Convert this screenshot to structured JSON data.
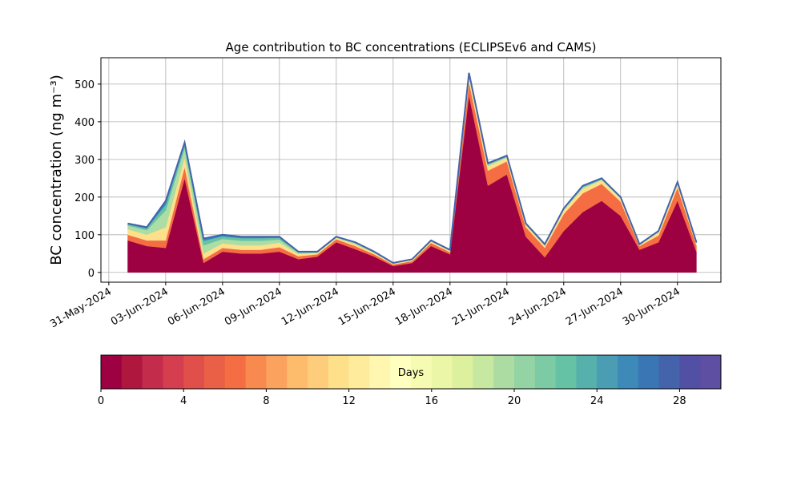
{
  "chart_data": {
    "type": "stacked_area",
    "title": "Age contribution to BC concentrations (ECLIPSEv6 and CAMS)",
    "ylabel": "BC concentration (ng m⁻³)",
    "x": [
      "2024-06-01",
      "2024-06-02",
      "2024-06-03",
      "2024-06-04",
      "2024-06-05",
      "2024-06-06",
      "2024-06-07",
      "2024-06-08",
      "2024-06-09",
      "2024-06-10",
      "2024-06-11",
      "2024-06-12",
      "2024-06-13",
      "2024-06-14",
      "2024-06-15",
      "2024-06-16",
      "2024-06-17",
      "2024-06-18",
      "2024-06-19",
      "2024-06-20",
      "2024-06-21",
      "2024-06-22",
      "2024-06-23",
      "2024-06-24",
      "2024-06-25",
      "2024-06-26",
      "2024-06-27",
      "2024-06-28",
      "2024-06-29",
      "2024-06-30",
      "2024-07-01"
    ],
    "series": [
      {
        "color": "#9e0142",
        "values": [
          85,
          70,
          65,
          250,
          25,
          55,
          50,
          50,
          55,
          35,
          42,
          80,
          62,
          42,
          17,
          25,
          70,
          48,
          470,
          230,
          260,
          95,
          40,
          110,
          160,
          190,
          150,
          60,
          80,
          190,
          55
        ]
      },
      {
        "color": "#f46d43",
        "values": [
          15,
          15,
          20,
          30,
          10,
          10,
          10,
          10,
          12,
          8,
          6,
          8,
          8,
          6,
          4,
          5,
          8,
          6,
          35,
          40,
          35,
          25,
          25,
          45,
          50,
          45,
          38,
          10,
          18,
          35,
          17
        ]
      },
      {
        "color": "#fee08b",
        "values": [
          15,
          15,
          35,
          25,
          15,
          12,
          12,
          12,
          12,
          6,
          4,
          4,
          5,
          4,
          2,
          3,
          4,
          3,
          15,
          12,
          10,
          6,
          6,
          10,
          12,
          10,
          8,
          3,
          8,
          10,
          5
        ]
      },
      {
        "color": "#abdda4",
        "values": [
          10,
          12,
          45,
          25,
          22,
          12,
          12,
          12,
          8,
          3,
          1,
          1,
          3,
          1,
          1,
          1,
          1,
          1,
          5,
          4,
          2,
          2,
          2,
          3,
          4,
          2,
          2,
          1,
          2,
          3,
          1
        ]
      },
      {
        "color": "#66c2a5",
        "values": [
          3,
          5,
          15,
          10,
          12,
          7,
          7,
          7,
          5,
          2,
          1,
          1,
          1,
          1,
          0,
          0,
          1,
          1,
          3,
          2,
          1,
          1,
          1,
          1,
          2,
          1,
          1,
          0,
          1,
          1,
          1
        ]
      },
      {
        "color": "#3288bd",
        "values": [
          2,
          3,
          10,
          5,
          6,
          4,
          4,
          4,
          3,
          1,
          1,
          1,
          1,
          1,
          1,
          1,
          1,
          1,
          2,
          2,
          2,
          1,
          1,
          1,
          2,
          2,
          1,
          1,
          1,
          1,
          1
        ]
      }
    ],
    "xlim": [
      "2024-05-30T14:00",
      "2024-07-02T07:00"
    ],
    "xticks": [
      {
        "value": "2024-05-31",
        "label": "31-May-2024"
      },
      {
        "value": "2024-06-03",
        "label": "03-Jun-2024"
      },
      {
        "value": "2024-06-06",
        "label": "06-Jun-2024"
      },
      {
        "value": "2024-06-09",
        "label": "09-Jun-2024"
      },
      {
        "value": "2024-06-12",
        "label": "12-Jun-2024"
      },
      {
        "value": "2024-06-15",
        "label": "15-Jun-2024"
      },
      {
        "value": "2024-06-18",
        "label": "18-Jun-2024"
      },
      {
        "value": "2024-06-21",
        "label": "21-Jun-2024"
      },
      {
        "value": "2024-06-24",
        "label": "24-Jun-2024"
      },
      {
        "value": "2024-06-27",
        "label": "27-Jun-2024"
      },
      {
        "value": "2024-06-30",
        "label": "30-Jun-2024"
      }
    ],
    "ylim": [
      -26,
      570
    ],
    "yticks": [
      0,
      100,
      200,
      300,
      400,
      500
    ],
    "grid": true,
    "colorbar": {
      "label": "Days",
      "bounds": [
        0,
        30
      ],
      "ticks": [
        0,
        4,
        8,
        12,
        16,
        20,
        24,
        28
      ],
      "colors": [
        "#9e0142",
        "#b0173f",
        "#c32c4b",
        "#d53e4f",
        "#e04f4a",
        "#ea6046",
        "#f46d43",
        "#f88a50",
        "#fba35e",
        "#fdbb6c",
        "#fdcd7c",
        "#fee08b",
        "#feeb9c",
        "#fff6b0",
        "#ffffbf",
        "#f6fbb2",
        "#ebf7a6",
        "#dcf09e",
        "#c7e8a0",
        "#addca2",
        "#94d4a4",
        "#7dcba4",
        "#66c2a5",
        "#56b0ab",
        "#4a9db2",
        "#3d8ab8",
        "#3a76b3",
        "#4563ab",
        "#5150a4",
        "#5e4fa2"
      ]
    }
  }
}
